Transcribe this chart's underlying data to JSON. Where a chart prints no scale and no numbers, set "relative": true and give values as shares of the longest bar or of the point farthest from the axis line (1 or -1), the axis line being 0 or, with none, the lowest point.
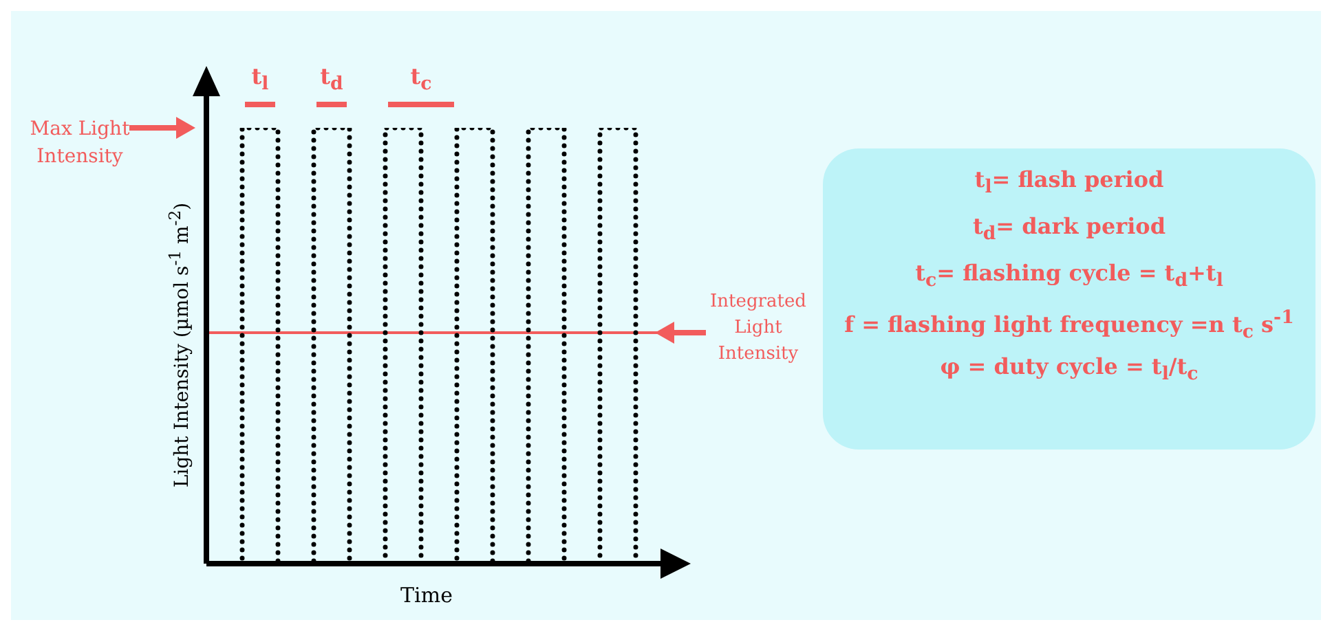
{
  "chart_data": {
    "type": "step",
    "relative": true,
    "xlabel": "Time",
    "ylabel": "Light Intensity (µmol s$^{-1}$ m$^{-2}$)",
    "categories": [
      null,
      null,
      null,
      null,
      null,
      null,
      null,
      null,
      null,
      null,
      null,
      null,
      null
    ],
    "series": [
      {
        "color": "#000000",
        "values": [
          0,
          1,
          0,
          1,
          0,
          1,
          0,
          1,
          0,
          1,
          0,
          1,
          0
        ]
      }
    ],
    "line_style": "dotted",
    "marker": "none",
    "ref_lines": [
      {
        "axis": "y",
        "value": 0.53,
        "label": "Integrated Light Intensity",
        "color": "#f25c5c"
      }
    ],
    "annotations": [
      "Max Light Intensity",
      "t$_{l}$",
      "t$_{d}$",
      "t$_{c}$",
      "t$_{l}$= flash period",
      "t$_{d}$= dark period",
      "t$_{c}$= flashing cycle = t$_{d}$+t$_{l}$",
      "f = flashing light frequency =n t$_{c}$ s$^{-1}$",
      "φ = duty cycle = t$_{l}$/t$_{c}$"
    ]
  }
}
